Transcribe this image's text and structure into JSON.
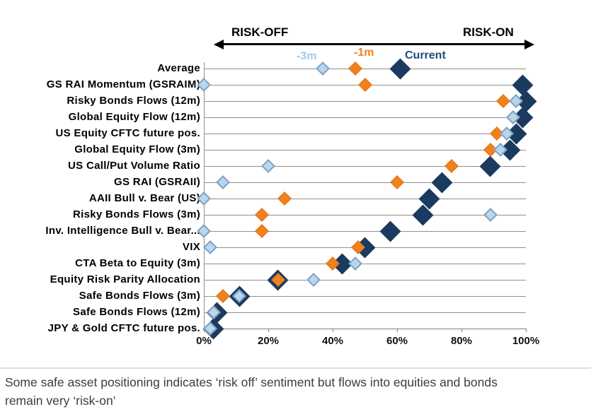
{
  "chart_data": {
    "type": "scatter",
    "marker": "diamond",
    "grid": "horizontal-gridlines",
    "legend_position": "top-inline-with-first-row",
    "risk_header": {
      "left": "RISK-OFF",
      "right": "RISK-ON"
    },
    "legend": [
      {
        "name": "-3m",
        "color": "#a5c9e5"
      },
      {
        "name": "-1m",
        "color": "#f0801f"
      },
      {
        "name": "Current",
        "color": "#1e4e79"
      }
    ],
    "categories": [
      "Average",
      "GS RAI Momentum (GSRAIM)",
      "Risky Bonds Flows (12m)",
      "Global Equity Flow (12m)",
      "US Equity CFTC future pos.",
      "Global Equity Flow (3m)",
      "US Call/Put Volume Ratio",
      "GS RAI (GSRAII)",
      "AAII Bull v. Bear (US)",
      "Risky Bonds Flows (3m)",
      "Inv. Intelligence Bull v. Bear...",
      "VIX",
      "CTA Beta to Equity (3m)",
      "Equity Risk Parity Allocation",
      "Safe Bonds Flows (3m)",
      "Safe Bonds Flows (12m)",
      "JPY & Gold CFTC future pos."
    ],
    "series": [
      {
        "name": "-3m",
        "fill": "#bad5ec",
        "border": "#7da3c4",
        "values": [
          37,
          0,
          97,
          96,
          94,
          92,
          20,
          6,
          0,
          89,
          0,
          2,
          47,
          34,
          11,
          3,
          2
        ]
      },
      {
        "name": "-1m",
        "fill": "#f0811f",
        "border": "#e2730f",
        "values": [
          47,
          50,
          93,
          96,
          91,
          89,
          77,
          60,
          25,
          18,
          18,
          48,
          40,
          23,
          6,
          3,
          2
        ]
      },
      {
        "name": "Current",
        "fill": "#1b3a5f",
        "border": "#1b3a5f",
        "values": [
          61,
          99,
          100,
          99,
          97,
          95,
          89,
          74,
          70,
          68,
          58,
          50,
          43,
          23,
          11,
          4,
          3
        ]
      }
    ],
    "x_ticks": [
      "0%",
      "20%",
      "40%",
      "60%",
      "80%",
      "100%"
    ],
    "xlim": [
      0,
      100
    ]
  },
  "caption": {
    "lines": [
      "Some safe asset positioning indicates ‘risk off’ sentiment but flows into equities and bonds",
      "remain very ‘risk-on’"
    ]
  }
}
